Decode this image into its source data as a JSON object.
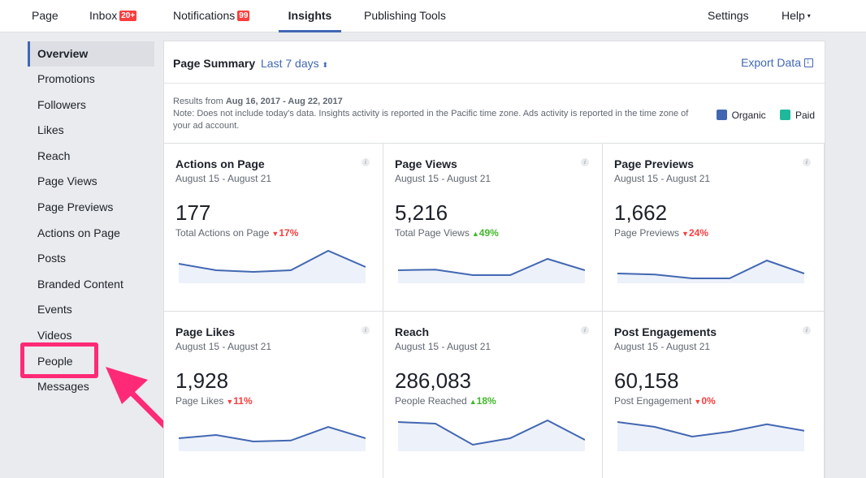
{
  "nav": {
    "page": "Page",
    "inbox": "Inbox",
    "inbox_badge": "20+",
    "notifications": "Notifications",
    "notifications_badge": "99",
    "insights": "Insights",
    "publishing_tools": "Publishing Tools",
    "settings": "Settings",
    "help": "Help",
    "help_caret": "▾"
  },
  "sidebar": {
    "items": [
      {
        "label": "Overview"
      },
      {
        "label": "Promotions"
      },
      {
        "label": "Followers"
      },
      {
        "label": "Likes"
      },
      {
        "label": "Reach"
      },
      {
        "label": "Page Views"
      },
      {
        "label": "Page Previews"
      },
      {
        "label": "Actions on Page"
      },
      {
        "label": "Posts"
      },
      {
        "label": "Branded Content"
      },
      {
        "label": "Events"
      },
      {
        "label": "Videos"
      },
      {
        "label": "People"
      },
      {
        "label": "Messages"
      }
    ]
  },
  "summary": {
    "title": "Page Summary",
    "range": "Last 7 days",
    "range_caret": "⬍",
    "export": "Export Data",
    "results_prefix": "Results from",
    "results_range": "Aug 16, 2017 - Aug 22, 2017",
    "note": "Note: Does not include today's data. Insights activity is reported in the Pacific time zone. Ads activity is reported in the time zone of your ad account.",
    "legend": {
      "organic": "Organic",
      "organic_color": "#4267b2",
      "paid": "Paid",
      "paid_color": "#1fb89d"
    }
  },
  "cards": [
    {
      "title": "Actions on Page",
      "date": "August 15 - August 21",
      "value": "177",
      "sub": "Total Actions on Page",
      "change": "17%",
      "dir": "down",
      "trend": [
        0.55,
        0.35,
        0.3,
        0.35,
        0.95,
        0.45
      ]
    },
    {
      "title": "Page Views",
      "date": "August 15 - August 21",
      "value": "5,216",
      "sub": "Total Page Views",
      "change": "49%",
      "dir": "up",
      "trend": [
        0.35,
        0.37,
        0.2,
        0.2,
        0.7,
        0.35
      ]
    },
    {
      "title": "Page Previews",
      "date": "August 15 - August 21",
      "value": "1,662",
      "sub": "Page Previews",
      "change": "24%",
      "dir": "down",
      "trend": [
        0.25,
        0.22,
        0.1,
        0.1,
        0.65,
        0.25
      ]
    },
    {
      "title": "Page Likes",
      "date": "August 15 - August 21",
      "value": "1,928",
      "sub": "Page Likes",
      "change": "11%",
      "dir": "down",
      "trend": [
        0.35,
        0.45,
        0.25,
        0.28,
        0.7,
        0.35
      ]
    },
    {
      "title": "Reach",
      "date": "August 15 - August 21",
      "value": "286,083",
      "sub": "People Reached",
      "change": "18%",
      "dir": "up",
      "trend": [
        0.85,
        0.8,
        0.15,
        0.35,
        0.9,
        0.3
      ]
    },
    {
      "title": "Post Engagements",
      "date": "August 15 - August 21",
      "value": "60,158",
      "sub": "Post Engagement",
      "change": "0%",
      "dir": "down",
      "trend": [
        0.85,
        0.7,
        0.4,
        0.55,
        0.78,
        0.58
      ]
    }
  ],
  "arrows": {
    "down": "▼",
    "up": "▲"
  }
}
